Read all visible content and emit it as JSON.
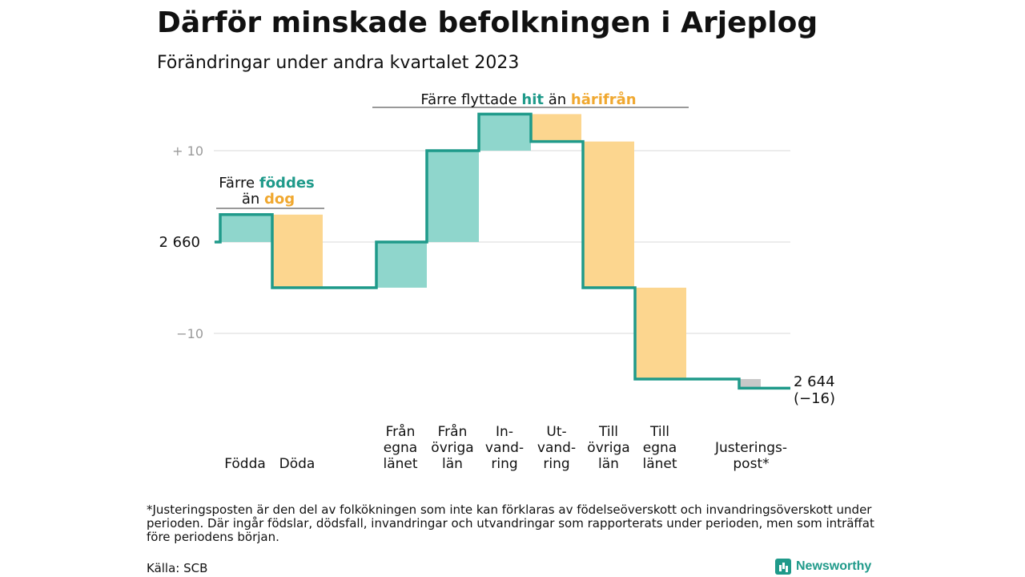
{
  "title": "Därför minskade befolkningen i Arjeplog",
  "subtitle": "Förändringar under andra kvartalet 2023",
  "chart_data": {
    "type": "waterfall",
    "start_value": 2660,
    "end_value": 2644,
    "y_ticks": [
      {
        "value": 10,
        "label": "+  10"
      },
      {
        "value": 0,
        "label": "2  660"
      },
      {
        "value": -10,
        "label": "−10"
      }
    ],
    "grid": true,
    "ylim": [
      -16,
      14
    ],
    "colors": {
      "inflow": "#1f9a8a",
      "inflow_fill": "#8fd6cc",
      "outflow": "#f0a830",
      "outflow_fill": "#fcd68f",
      "adjustment": "#c8c8c8",
      "line": "#1f9a8a"
    },
    "steps": [
      {
        "label": "Födda",
        "change": 3,
        "kind": "inflow"
      },
      {
        "label": "Döda",
        "change": -8,
        "kind": "outflow"
      },
      {
        "label": "Från egna länet",
        "label_lines": [
          "Från",
          "egna",
          "länet"
        ],
        "change": 5,
        "kind": "inflow"
      },
      {
        "label": "Från övriga län",
        "label_lines": [
          "Från",
          "övriga",
          "län"
        ],
        "change": 10,
        "kind": "inflow"
      },
      {
        "label": "Invandring",
        "label_lines": [
          "In-",
          "vand-",
          "ring"
        ],
        "change": 4,
        "kind": "inflow"
      },
      {
        "label": "Utvandring",
        "label_lines": [
          "Ut-",
          "vand-",
          "ring"
        ],
        "change": -3,
        "kind": "outflow"
      },
      {
        "label": "Till övriga län",
        "label_lines": [
          "Till",
          "övriga",
          "län"
        ],
        "change": -16,
        "kind": "outflow"
      },
      {
        "label": "Till egna länet",
        "label_lines": [
          "Till",
          "egna",
          "länet"
        ],
        "change": -10,
        "kind": "outflow"
      },
      {
        "label": "Justeringspost*",
        "label_lines": [
          "Justerings-",
          "post*"
        ],
        "change": -1,
        "kind": "adjustment"
      }
    ],
    "end_label": "2 644",
    "end_change_label": "(−16)",
    "annotations": [
      {
        "prefix": "Färre ",
        "highlight": "föddes",
        "suffix_prefix": "än ",
        "suffix_highlight": "dog"
      },
      {
        "prefix": "Färre flyttade ",
        "highlight": "hit",
        "middle": " än ",
        "highlight2": "härifrån"
      }
    ]
  },
  "footnote": "*Justeringsposten är den del av folkökningen som inte kan förklaras av födelseöverskott och invandringsöverskott under perioden. Där ingår födslar, dödsfall, invandringar och utvandringar som rapporterats under perioden, men som inträffat före periodens början.",
  "source": "Källa: SCB",
  "brand": "Newsworthy"
}
